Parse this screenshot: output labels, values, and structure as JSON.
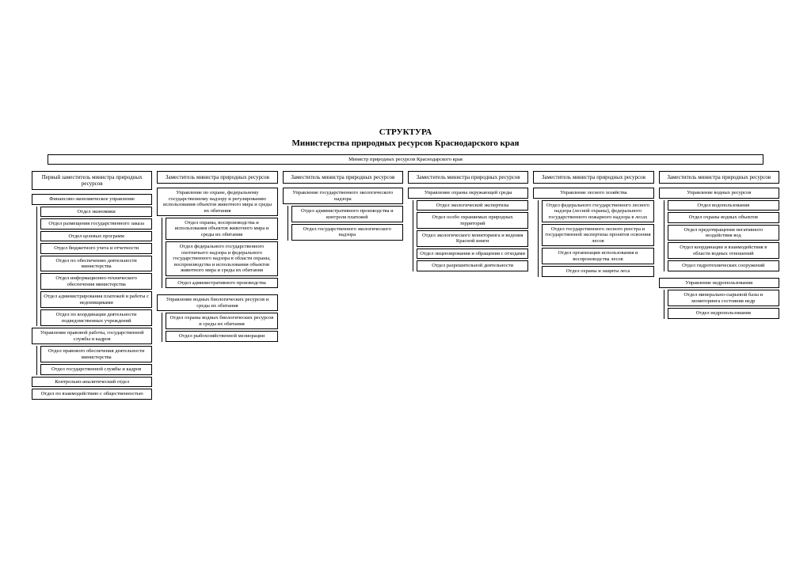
{
  "title_line1": "СТРУКТУРА",
  "title_line2": "Министерства природных ресурсов Краснодарского края",
  "minister": "Министр природных ресурсов Краснодарского края",
  "col1": {
    "head": "Первый заместитель министра природных ресурсов",
    "mgmt1": "Финансово-экономическое управление",
    "d1": "Отдел экономики",
    "d2": "Отдел размещения государственного заказа",
    "d3": "Отдел целевых программ",
    "d4": "Отдел бюджетного учета и отчетности",
    "d5": "Отдел по обеспечению деятельности министерства",
    "d6": "Отдел информационно-технического обеспечения министерства",
    "d7": "Отдел администрирования платежей и работы с недоимщиками",
    "d8": "Отдел по координации деятельности подведомственных учреждений",
    "mgmt2": "Управление правовой работы, государственной службы и кадров",
    "d9": "Отдел правового обеспечения деятельности министерства",
    "d10": "Отдел государственной службы и кадров",
    "d11": "Контрольно-аналитический отдел",
    "d12": "Отдел по взаимодействию с общественностью"
  },
  "col2": {
    "head": "Заместитель министра природных ресурсов",
    "mgmt1": "Управление по охране, федеральному государственному надзору и регулированию использования объектов животного мира и среды их обитания",
    "d1": "Отдел охраны, воспроизводства и использования объектов животного мира и среды их обитания",
    "d2": "Отдел федерального государственного охотничьего надзора и федерального государственного надзора в области охраны, воспроизводства и использования объектов животного мира и среды их обитания",
    "d3": "Отдел административного производства",
    "mgmt2": "Управление водных биологических ресурсов и среды их обитания",
    "d4": "Отдел охраны водных биологических ресурсов и среды их обитания",
    "d5": "Отдел рыбохозяйственной мелиорации"
  },
  "col3": {
    "head": "Заместитель министра природных ресурсов",
    "mgmt1": "Управление государственного экологического надзора",
    "d1": "Отдел административного производства и контроля платежей",
    "d2": "Отдел государственного экологического надзора"
  },
  "col4": {
    "head": "Заместитель министра природных ресурсов",
    "mgmt1": "Управление охраны окружающей среды",
    "d1": "Отдел экологической экспертизы",
    "d2": "Отдел особо охраняемых природных территорий",
    "d3": "Отдел экологического мониторинга и ведения Красной книги",
    "d4": "Отдел лицензирования и обращения с отходами",
    "d5": "Отдел разрешительной деятельности"
  },
  "col5": {
    "head": "Заместитель министра природных ресурсов",
    "mgmt1": "Управление лесного хозяйства",
    "d1": "Отдел федерального государственного лесного надзора (лесной охраны), федерального государственного пожарного надзора в лесах",
    "d2": "Отдел государственного лесного реестра и государственной экспертизы проектов освоения лесов",
    "d3": "Отдел организации использования и воспроизводства лесов",
    "d4": "Отдел охраны и защиты леса"
  },
  "col6": {
    "head": "Заместитель министра природных ресурсов",
    "mgmt1": "Управление водных ресурсов",
    "d1": "Отдел водопользования",
    "d2": "Отдел охраны водных объектов",
    "d3": "Отдел предотвращения негативного воздействия вод",
    "d4": "Отдел координации и взаимодействия в области водных отношений",
    "d5": "Отдел гидротехнических сооружений",
    "mgmt2": "Управление недропользования",
    "d6": "Отдел минерально-сырьевой базы и мониторинга состояния недр",
    "d7": "Отдел недропользования"
  }
}
